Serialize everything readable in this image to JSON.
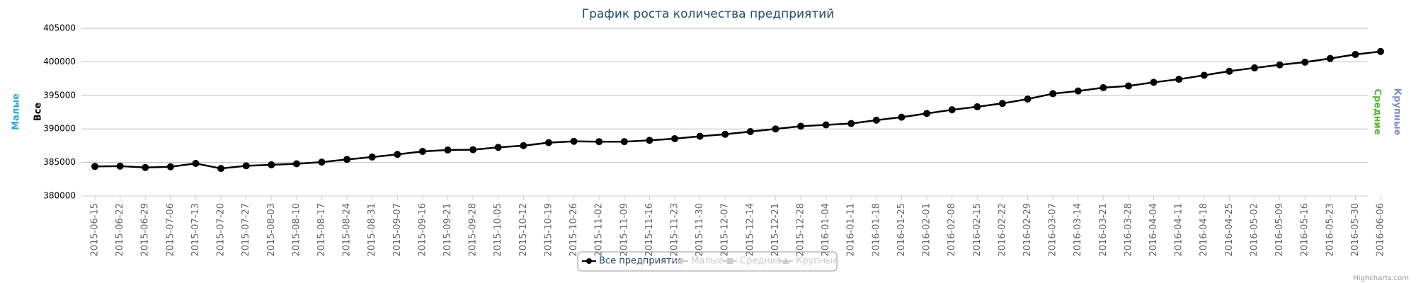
{
  "chart_data": {
    "type": "line",
    "title": "График роста количества предприятий",
    "categories": [
      "2015-06-15",
      "2015-06-22",
      "2015-06-29",
      "2015-07-06",
      "2015-07-13",
      "2015-07-20",
      "2015-07-27",
      "2015-08-03",
      "2015-08-10",
      "2015-08-17",
      "2015-08-24",
      "2015-08-31",
      "2015-09-07",
      "2015-09-16",
      "2015-09-21",
      "2015-09-28",
      "2015-10-05",
      "2015-10-12",
      "2015-10-19",
      "2015-10-26",
      "2015-11-02",
      "2015-11-09",
      "2015-11-16",
      "2015-11-23",
      "2015-11-30",
      "2015-12-07",
      "2015-12-14",
      "2015-12-21",
      "2015-12-28",
      "2016-01-04",
      "2016-01-11",
      "2016-01-18",
      "2016-01-25",
      "2016-02-01",
      "2016-02-08",
      "2016-02-15",
      "2016-02-22",
      "2016-02-29",
      "2016-03-07",
      "2016-03-14",
      "2016-03-21",
      "2016-03-28",
      "2016-04-04",
      "2016-04-11",
      "2016-04-18",
      "2016-04-25",
      "2016-05-02",
      "2016-05-09",
      "2016-05-16",
      "2016-05-23",
      "2016-05-30",
      "2016-06-06"
    ],
    "series": [
      {
        "name": "Все предприятия",
        "color": "#000000",
        "values": [
          384400,
          384450,
          384250,
          384350,
          384850,
          384100,
          384500,
          384650,
          384800,
          385050,
          385450,
          385800,
          386200,
          386650,
          386850,
          386900,
          387250,
          387500,
          387950,
          388150,
          388100,
          388100,
          388300,
          388550,
          388900,
          389200,
          389600,
          390000,
          390400,
          390600,
          390800,
          391300,
          391750,
          392300,
          392850,
          393300,
          393800,
          394450,
          395250,
          395650,
          396150,
          396400,
          396950,
          397400,
          398000,
          398600,
          399100,
          399550,
          399950,
          400500,
          401100,
          401550
        ]
      }
    ],
    "hidden_series": [
      {
        "name": "Малые",
        "color": "#cccccc"
      },
      {
        "name": "Средние",
        "color": "#cccccc"
      },
      {
        "name": "Крупные",
        "color": "#cccccc"
      }
    ],
    "axis_titles": [
      {
        "text": "Малые",
        "color": "#22a6d6"
      },
      {
        "text": "Все",
        "color": "#000000"
      },
      {
        "text": "Средние",
        "color": "#55b82d"
      },
      {
        "text": "Крупные",
        "color": "#7e8ec9"
      }
    ],
    "ylim": [
      380000,
      405000
    ],
    "yticks": [
      380000,
      385000,
      390000,
      395000,
      400000,
      405000
    ],
    "grid": true,
    "credits": "Highcharts.com"
  }
}
